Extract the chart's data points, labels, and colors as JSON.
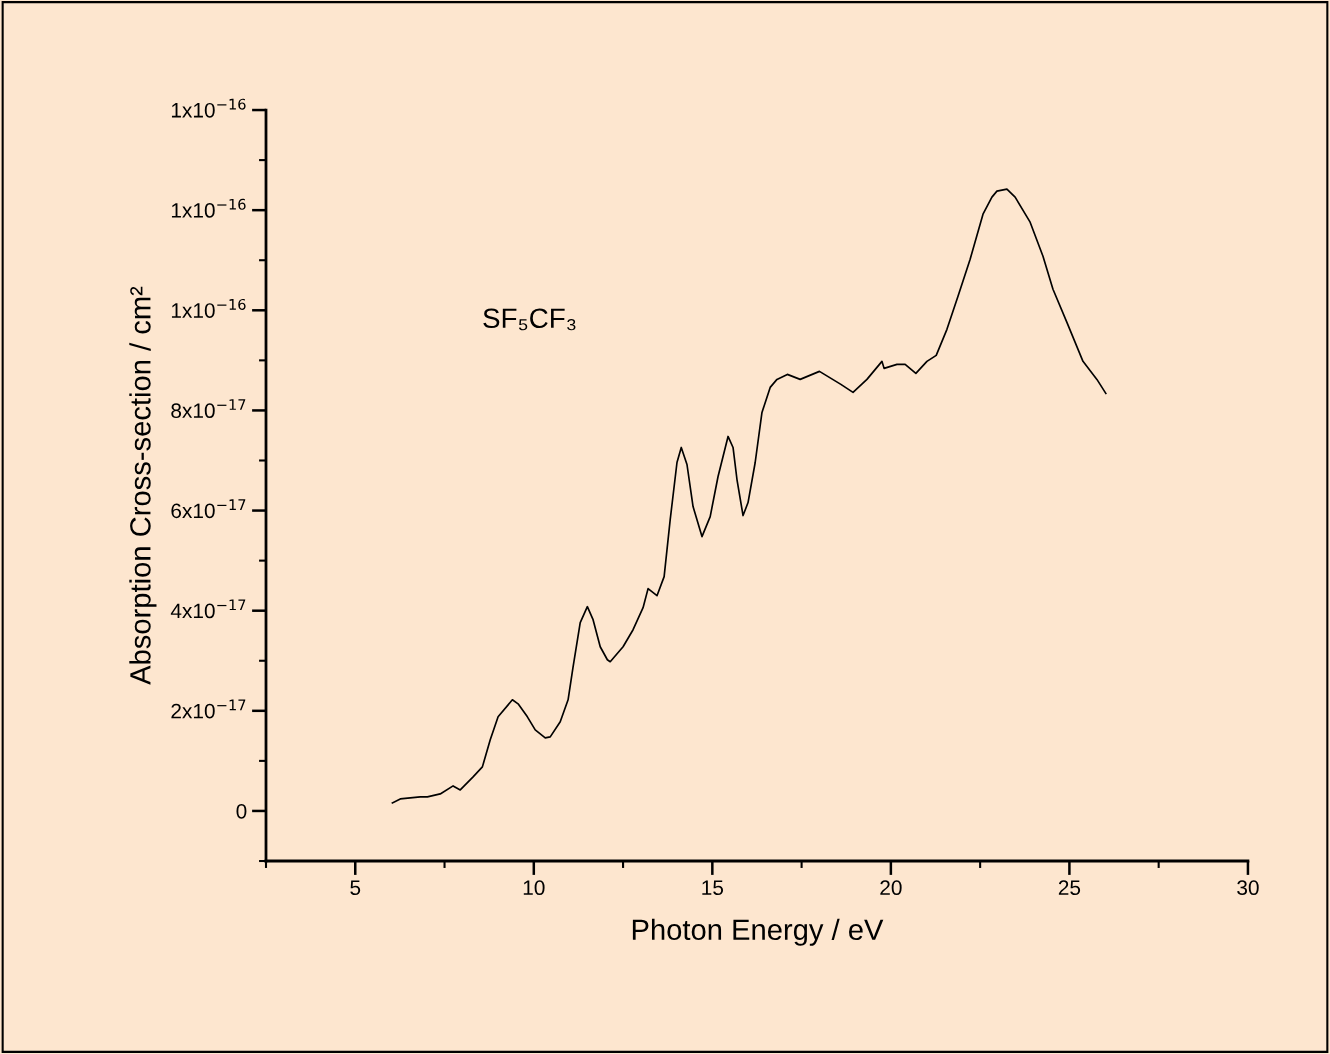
{
  "chart_data": {
    "type": "line",
    "xlabel": "Photon Energy / eV",
    "ylabel": "Absorption Cross-section / cm²",
    "annotations": [
      "SF₅CF₃"
    ],
    "xlim": [
      2.5,
      30
    ],
    "ylim": [
      -1e-17,
      1.4e-16
    ],
    "xticks": [
      {
        "value": 2.5,
        "label": null
      },
      5,
      {
        "value": 7.5,
        "label": null
      },
      10,
      {
        "value": 12.5,
        "label": null
      },
      15,
      {
        "value": 17.5,
        "label": null
      },
      20,
      {
        "value": 22.5,
        "label": null
      },
      25,
      {
        "value": 27.5,
        "label": null
      },
      30
    ],
    "yticks": [
      {
        "value": -1e-17,
        "label": null
      },
      {
        "value": 0,
        "label": "0"
      },
      {
        "value": 1e-17,
        "label": null
      },
      {
        "value": 2e-17,
        "label": "2x10$^{−17}$"
      },
      {
        "value": 3e-17,
        "label": null
      },
      {
        "value": 4e-17,
        "label": "4x10$^{−17}$"
      },
      {
        "value": 5e-17,
        "label": null
      },
      {
        "value": 6e-17,
        "label": "6x10$^{−17}$"
      },
      {
        "value": 7e-17,
        "label": null
      },
      {
        "value": 8e-17,
        "label": "8x10$^{−17}$"
      },
      {
        "value": 9e-17,
        "label": null
      },
      {
        "value": 1e-16,
        "label": "1x10$^{−16}$"
      },
      {
        "value": 1.1e-16,
        "label": null
      },
      {
        "value": 1.2e-16,
        "label": "1x10$^{−16}$"
      },
      {
        "value": 1.3e-16,
        "label": null
      },
      {
        "value": 1.4e-16,
        "label": "1x10$^{−16}$"
      }
    ],
    "grid": false,
    "legend": false,
    "marker": "none",
    "line_style": "solid",
    "series": [
      {
        "color": "#000000",
        "x": [
          6.04,
          6.26,
          6.82,
          7.02,
          7.38,
          7.74,
          7.94,
          8.3,
          8.56,
          8.78,
          9.0,
          9.4,
          9.56,
          9.82,
          10.04,
          10.32,
          10.46,
          10.74,
          10.96,
          11.1,
          11.3,
          11.5,
          11.66,
          11.86,
          12.06,
          12.14,
          12.5,
          12.78,
          13.06,
          13.2,
          13.45,
          13.65,
          13.82,
          14.01,
          14.13,
          14.29,
          14.46,
          14.71,
          14.94,
          15.16,
          15.44,
          15.58,
          15.69,
          15.86,
          16.0,
          16.2,
          16.39,
          16.62,
          16.81,
          17.1,
          17.46,
          18.0,
          18.6,
          18.94,
          19.33,
          19.75,
          19.81,
          20.17,
          20.4,
          20.7,
          21.01,
          21.27,
          21.57,
          21.88,
          22.22,
          22.58,
          22.83,
          22.97,
          23.25,
          23.48,
          23.9,
          24.26,
          24.54,
          24.93,
          25.38,
          25.77,
          26.02
        ],
        "values": [
          1.6e-18,
          2.4e-18,
          2.8e-18,
          2.8e-18,
          3.4e-18,
          5e-18,
          4.2e-18,
          6.8e-18,
          8.8e-18,
          1.42e-17,
          1.88e-17,
          2.22e-17,
          2.14e-17,
          1.88e-17,
          1.62e-17,
          1.46e-17,
          1.48e-17,
          1.78e-17,
          2.22e-17,
          2.88e-17,
          3.76e-17,
          4.08e-17,
          3.82e-17,
          3.28e-17,
          3.02e-17,
          2.98e-17,
          3.28e-17,
          3.62e-17,
          4.06e-17,
          4.44e-17,
          4.3e-17,
          4.68e-17,
          5.82e-17,
          6.96e-17,
          7.26e-17,
          6.92e-17,
          6.08e-17,
          5.48e-17,
          5.88e-17,
          6.68e-17,
          7.48e-17,
          7.26e-17,
          6.62e-17,
          5.9e-17,
          6.16e-17,
          6.96e-17,
          7.96e-17,
          8.46e-17,
          8.62e-17,
          8.72e-17,
          8.62e-17,
          8.78e-17,
          8.52e-17,
          8.36e-17,
          8.62e-17,
          8.98e-17,
          8.84e-17,
          8.92e-17,
          8.92e-17,
          8.74e-17,
          8.98e-17,
          9.1e-17,
          9.62e-17,
          1.028e-16,
          1.102e-16,
          1.192e-16,
          1.226e-16,
          1.238e-16,
          1.242e-16,
          1.226e-16,
          1.176e-16,
          1.108e-16,
          1.042e-16,
          9.76e-17,
          8.98e-17,
          8.62e-17,
          8.34e-17
        ]
      }
    ]
  }
}
